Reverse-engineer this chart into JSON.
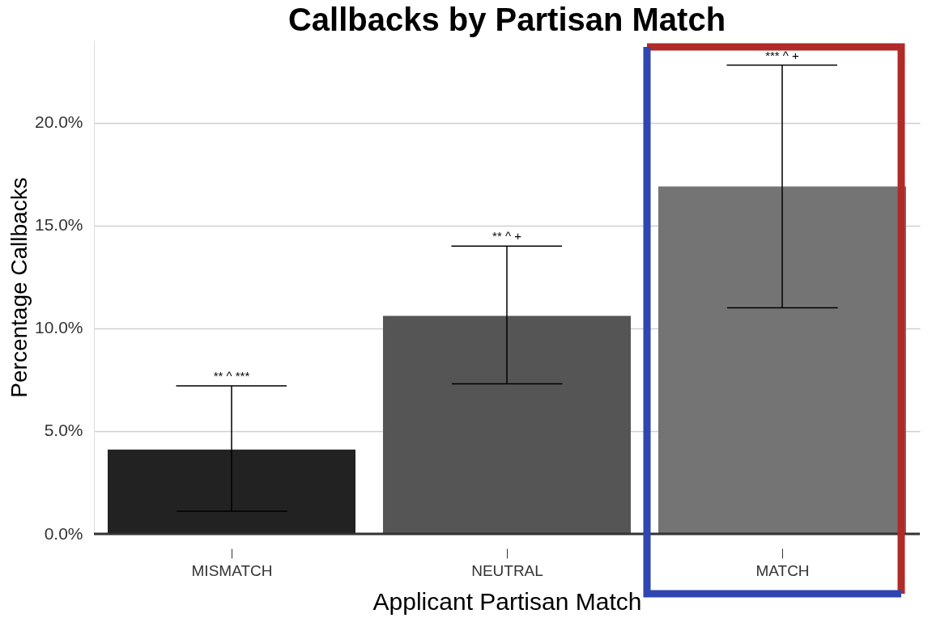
{
  "chart_data": {
    "type": "bar",
    "title": "Callbacks by Partisan Match",
    "xlabel": "Applicant Partisan Match",
    "ylabel": "Percentage Callbacks",
    "categories": [
      "MISMATCH",
      "NEUTRAL",
      "MATCH"
    ],
    "values": [
      4.1,
      10.6,
      16.9
    ],
    "colors": [
      "#222222",
      "#555555",
      "#747474"
    ],
    "errors": [
      [
        1.1,
        7.2
      ],
      [
        7.3,
        14.0
      ],
      [
        11.0,
        22.8
      ]
    ],
    "annotations": [
      {
        "text": "** ^ ***",
        "x": "MISMATCH",
        "y": 7.2
      },
      {
        "text": "** ^ +",
        "x": "NEUTRAL",
        "y": 14.0
      },
      {
        "text": "*** ^ +",
        "x": "MATCH",
        "y": 22.8
      }
    ],
    "ylim": [
      0,
      24
    ],
    "yticks": [
      {
        "value": 0,
        "label": "0.0%"
      },
      {
        "value": 5,
        "label": "5.0%"
      },
      {
        "value": 10,
        "label": "10.0%"
      },
      {
        "value": 15,
        "label": "15.0%"
      },
      {
        "value": 20,
        "label": "20.0%"
      }
    ],
    "grid": "y"
  }
}
